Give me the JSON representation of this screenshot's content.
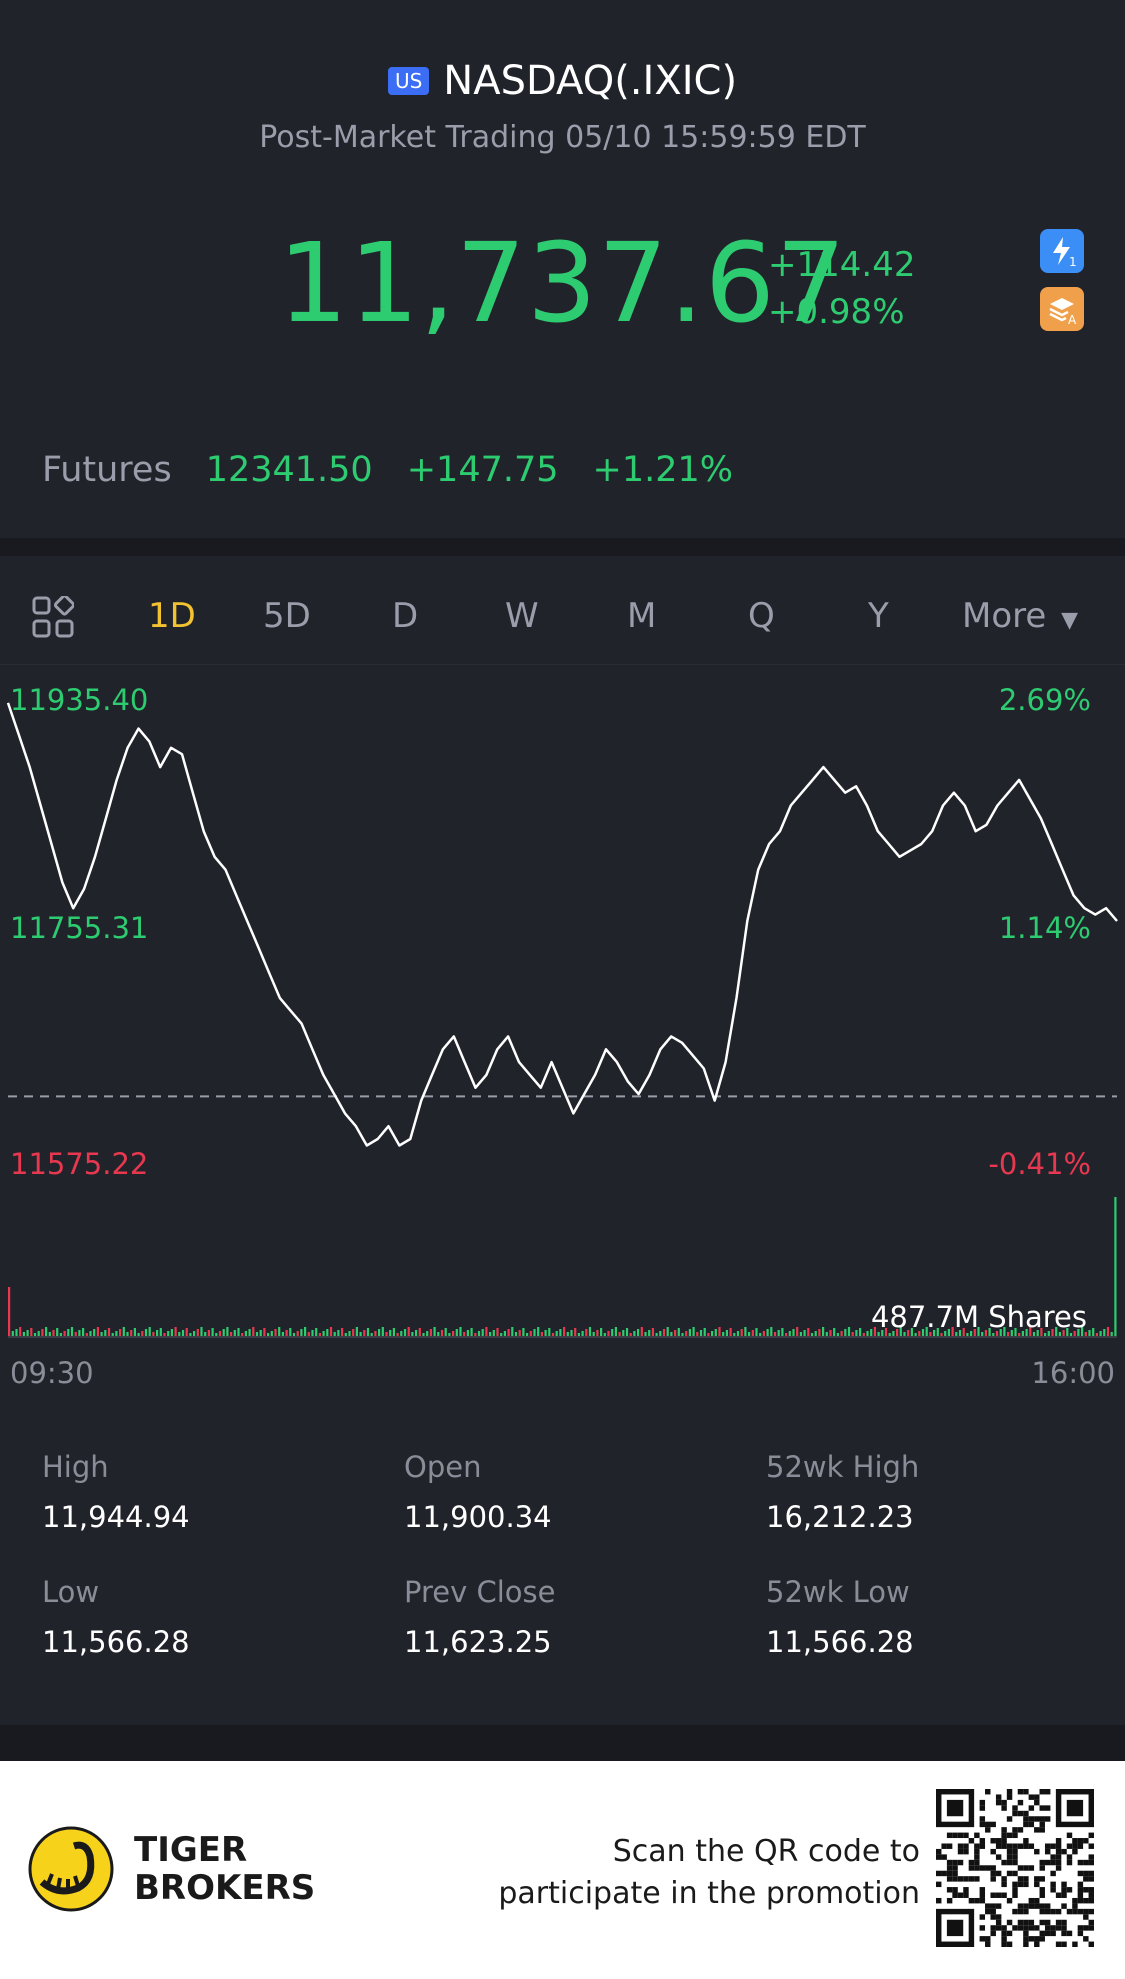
{
  "header": {
    "market_badge": "US",
    "title": "NASDAQ(.IXIC)",
    "subtitle": "Post-Market Trading 05/10 15:59:59 EDT"
  },
  "quote": {
    "price": "11,737.67",
    "change": "+114.42",
    "change_pct": "+0.98%",
    "color": "#2ecc71"
  },
  "side_icons": [
    {
      "name": "lightning-level1-icon",
      "color": "#3b8ef5",
      "glyph": "⚡1"
    },
    {
      "name": "stack-a-icon",
      "color": "#f0a04b",
      "glyph": "A"
    }
  ],
  "futures": {
    "label": "Futures",
    "price": "12341.50",
    "change": "+147.75",
    "change_pct": "+1.21%"
  },
  "tabs": {
    "grid_icon": "grid-layout-icon",
    "items": [
      "1D",
      "5D",
      "D",
      "W",
      "M",
      "Q",
      "Y",
      "More"
    ],
    "active": "1D"
  },
  "chart": {
    "y_high": "11935.40",
    "y_mid": "11755.31",
    "y_low": "11575.22",
    "pct_high": "2.69%",
    "pct_mid": "1.14%",
    "pct_low": "-0.41%",
    "volume_label": "487.7M Shares",
    "time_start": "09:30",
    "time_end": "16:00"
  },
  "chart_data": {
    "type": "line",
    "series": [
      {
        "values": [
          11930,
          11905,
          11880,
          11850,
          11820,
          11790,
          11770,
          11785,
          11810,
          11840,
          11870,
          11895,
          11910,
          11900,
          11880,
          11895,
          11890,
          11860,
          11830,
          11810,
          11800,
          11780,
          11760,
          11740,
          11720,
          11700,
          11690,
          11680,
          11660,
          11640,
          11625,
          11610,
          11600,
          11585,
          11590,
          11600,
          11585,
          11590,
          11620,
          11640,
          11660,
          11670,
          11650,
          11630,
          11640,
          11660,
          11670,
          11650,
          11640,
          11630,
          11650,
          11630,
          11610,
          11625,
          11640,
          11660,
          11650,
          11635,
          11625,
          11640,
          11660,
          11670,
          11665,
          11655,
          11645,
          11620,
          11650,
          11700,
          11760,
          11800,
          11820,
          11830,
          11850,
          11860,
          11870,
          11880,
          11870,
          11860,
          11865,
          11850,
          11830,
          11820,
          11810,
          11815,
          11820,
          11830,
          11850,
          11860,
          11850,
          11830,
          11835,
          11850,
          11860,
          11870,
          11855,
          11840,
          11820,
          11800,
          11780,
          11770,
          11765,
          11770,
          11760
        ]
      }
    ],
    "xlabel": "",
    "ylabel": "",
    "x_range": [
      "09:30",
      "16:00"
    ],
    "ylim": [
      11575.22,
      11935.4
    ],
    "prev_close": 11623.25,
    "grid": false,
    "volume_total": "487.7M Shares"
  },
  "stats": [
    {
      "label": "High",
      "value": "11,944.94"
    },
    {
      "label": "Open",
      "value": "11,900.34"
    },
    {
      "label": "52wk High",
      "value": "16,212.23"
    },
    {
      "label": "Low",
      "value": "11,566.28"
    },
    {
      "label": "Prev Close",
      "value": "11,623.25"
    },
    {
      "label": "52wk Low",
      "value": "11,566.28"
    }
  ],
  "footer": {
    "brand_line1": "TIGER",
    "brand_line2": "BROKERS",
    "promo_line1": "Scan the QR code to",
    "promo_line2": "participate in the promotion",
    "logo_icon": "tiger-logo-icon",
    "qr_icon": "qr-code-icon"
  }
}
